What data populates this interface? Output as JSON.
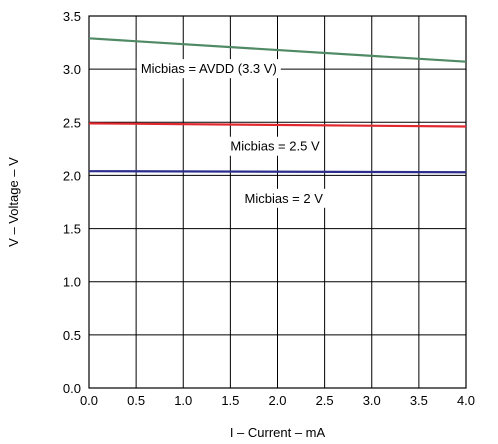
{
  "chart_data": {
    "type": "line",
    "xlabel": "I – Current – mA",
    "ylabel": "V – Voltage – V",
    "xlim": [
      0,
      4
    ],
    "ylim": [
      0,
      3.5
    ],
    "x_ticks": [
      "0.0",
      "0.5",
      "1.0",
      "1.5",
      "2.0",
      "2.5",
      "3.0",
      "3.5",
      "4.0"
    ],
    "y_ticks": [
      "0.0",
      "0.5",
      "1.0",
      "1.5",
      "2.0",
      "2.5",
      "3.0",
      "3.5"
    ],
    "grid": true,
    "series": [
      {
        "name": "Micbias = AVDD (3.3 V)",
        "color": "#4f8a64",
        "x": [
          0,
          4
        ],
        "y": [
          3.29,
          3.07
        ]
      },
      {
        "name": "Micbias = 2.5 V",
        "color": "#e0282e",
        "x": [
          0,
          4
        ],
        "y": [
          2.49,
          2.46
        ]
      },
      {
        "name": "Micbias = 2 V",
        "color": "#2b2d8c",
        "x": [
          0,
          4
        ],
        "y": [
          2.04,
          2.03
        ]
      }
    ]
  }
}
